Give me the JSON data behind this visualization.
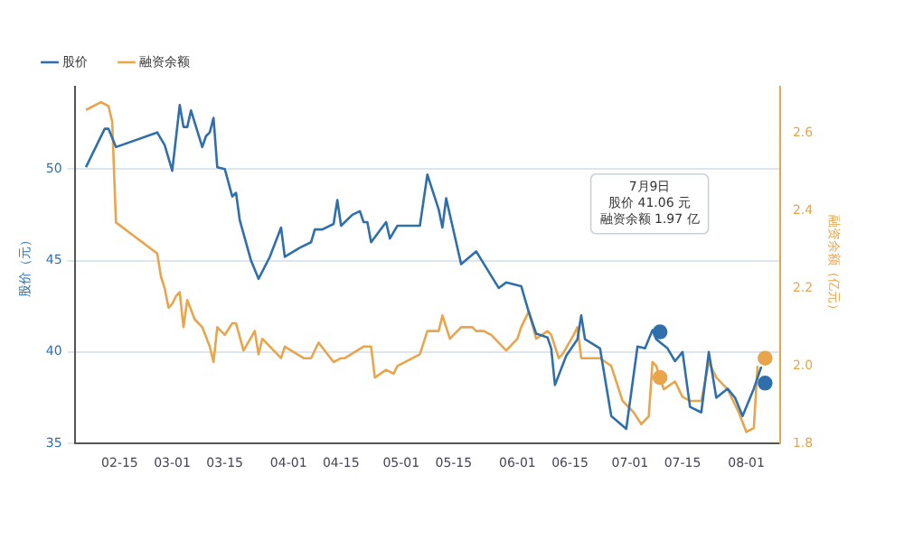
{
  "chart_data": {
    "type": "line",
    "ylabel": "股价（元）",
    "y2label": "融资余额（亿元）",
    "xlim": [
      "--02-03",
      "--08-10"
    ],
    "xticks": [
      {
        "value": "--02-15",
        "label": "02-15"
      },
      {
        "value": "--03-01",
        "label": "03-01"
      },
      {
        "value": "--03-15",
        "label": "03-15"
      },
      {
        "value": "--04-01",
        "label": "04-01"
      },
      {
        "value": "--04-15",
        "label": "04-15"
      },
      {
        "value": "--05-01",
        "label": "05-01"
      },
      {
        "value": "--05-15",
        "label": "05-15"
      },
      {
        "value": "--06-01",
        "label": "06-01"
      },
      {
        "value": "--06-15",
        "label": "06-15"
      },
      {
        "value": "--07-01",
        "label": "07-01"
      },
      {
        "value": "--07-15",
        "label": "07-15"
      },
      {
        "value": "--08-01",
        "label": "08-01"
      }
    ],
    "ylim": [
      35,
      54.5
    ],
    "yticks": [
      35,
      40,
      45,
      50
    ],
    "y2lim": [
      1.8,
      2.72
    ],
    "y2ticks": [
      1.8,
      {
        "value": 2,
        "label": "2.0"
      },
      2.2,
      2.4,
      2.6
    ],
    "grid": "y",
    "legend": "top left",
    "marker": "none",
    "line_style": "solid",
    "series": [
      {
        "name": "股价",
        "color": "#2f6fab",
        "x": [
          "--02-06",
          "--02-11",
          "--02-12",
          "--02-14",
          "--02-25",
          "--02-27",
          "--03-01",
          "--03-02",
          "--03-03",
          "--03-04",
          "--03-05",
          "--03-06",
          "--03-09",
          "--03-10",
          "--03-11",
          "--03-12",
          "--03-13",
          "--03-15",
          "--03-17",
          "--03-18",
          "--03-19",
          "--03-22",
          "--03-24",
          "--03-27",
          "--03-30",
          "--03-31",
          "--04-04",
          "--04-07",
          "--04-08",
          "--04-10",
          "--04-13",
          "--04-14",
          "--04-15",
          "--04-18",
          "--04-20",
          "--04-21",
          "--04-22",
          "--04-23",
          "--04-27",
          "--04-28",
          "--04-30",
          "--05-06",
          "--05-08",
          "--05-11",
          "--05-12",
          "--05-13",
          "--05-17",
          "--05-21",
          "--05-27",
          "--05-29",
          "--06-02",
          "--06-04",
          "--06-06",
          "--06-09",
          "--06-10",
          "--06-11",
          "--06-14",
          "--06-17",
          "--06-18",
          "--06-19",
          "--06-23",
          "--06-26",
          "--06-30",
          "--07-03",
          "--07-05",
          "--07-07",
          "--07-08",
          "--07-11",
          "--07-13",
          "--07-15",
          "--07-17",
          "--07-20",
          "--07-22",
          "--07-24",
          "--07-27",
          "--07-29",
          "--07-31",
          "--08-03",
          "--08-05"
        ],
        "values": [
          50.1,
          52.2,
          52.2,
          51.2,
          52.0,
          51.3,
          49.9,
          51.7,
          53.5,
          52.3,
          52.3,
          53.2,
          51.2,
          51.8,
          52.0,
          52.8,
          50.1,
          50.0,
          48.5,
          48.7,
          47.2,
          45.0,
          44.0,
          45.2,
          46.8,
          45.2,
          45.7,
          46.0,
          46.7,
          46.7,
          47.0,
          48.3,
          46.9,
          47.5,
          47.7,
          47.1,
          47.1,
          46.0,
          47.1,
          46.2,
          46.9,
          46.9,
          49.7,
          47.8,
          46.8,
          48.4,
          44.8,
          45.5,
          43.5,
          43.8,
          43.6,
          42.2,
          41.0,
          40.8,
          40.2,
          38.2,
          39.8,
          40.7,
          42.0,
          40.7,
          40.2,
          36.5,
          35.8,
          40.3,
          40.2,
          41.2,
          40.7,
          40.2,
          39.5,
          40.0,
          37.0,
          36.7,
          40.0,
          37.5,
          38.0,
          37.5,
          36.5,
          38.0,
          39.2
        ]
      },
      {
        "name": "融资余额",
        "color": "#e8a54b",
        "axis": "y2",
        "x": [
          "--02-06",
          "--02-10",
          "--02-12",
          "--02-13",
          "--02-14",
          "--02-25",
          "--02-26",
          "--02-27",
          "--02-28",
          "--03-01",
          "--03-02",
          "--03-03",
          "--03-04",
          "--03-05",
          "--03-07",
          "--03-09",
          "--03-11",
          "--03-12",
          "--03-13",
          "--03-15",
          "--03-17",
          "--03-18",
          "--03-20",
          "--03-23",
          "--03-24",
          "--03-25",
          "--03-30",
          "--03-31",
          "--04-05",
          "--04-07",
          "--04-09",
          "--04-13",
          "--04-15",
          "--04-16",
          "--04-21",
          "--04-23",
          "--04-24",
          "--04-27",
          "--04-29",
          "--04-30",
          "--05-06",
          "--05-08",
          "--05-11",
          "--05-12",
          "--05-14",
          "--05-17",
          "--05-20",
          "--05-21",
          "--05-23",
          "--05-25",
          "--05-29",
          "--06-01",
          "--06-02",
          "--06-04",
          "--06-06",
          "--06-09",
          "--06-10",
          "--06-12",
          "--06-13",
          "--06-16",
          "--06-17",
          "--06-18",
          "--06-23",
          "--06-26",
          "--06-29",
          "--06-30",
          "--07-02",
          "--07-04",
          "--07-06",
          "--07-07",
          "--07-08",
          "--07-10",
          "--07-13",
          "--07-15",
          "--07-17",
          "--07-20",
          "--07-22",
          "--07-24",
          "--07-27",
          "--07-29",
          "--07-30",
          "--08-01",
          "--08-03",
          "--08-04"
        ],
        "values": [
          2.66,
          2.68,
          2.67,
          2.63,
          2.37,
          2.29,
          2.23,
          2.2,
          2.15,
          2.16,
          2.18,
          2.19,
          2.1,
          2.17,
          2.12,
          2.1,
          2.05,
          2.01,
          2.1,
          2.08,
          2.11,
          2.11,
          2.04,
          2.09,
          2.03,
          2.07,
          2.02,
          2.05,
          2.02,
          2.02,
          2.06,
          2.01,
          2.02,
          2.02,
          2.05,
          2.05,
          1.97,
          1.99,
          1.98,
          2.0,
          2.03,
          2.09,
          2.09,
          2.13,
          2.07,
          2.1,
          2.1,
          2.09,
          2.09,
          2.08,
          2.04,
          2.07,
          2.1,
          2.14,
          2.07,
          2.09,
          2.08,
          2.02,
          2.03,
          2.08,
          2.1,
          2.02,
          2.02,
          2.0,
          1.91,
          1.9,
          1.88,
          1.85,
          1.87,
          2.01,
          2.0,
          1.94,
          1.96,
          1.92,
          1.91,
          1.91,
          2.01,
          1.97,
          1.94,
          1.9,
          1.88,
          1.83,
          1.84,
          2.0
        ]
      },
      {
        "type": "scatter",
        "marker": "circle",
        "color": "#2f6fab",
        "x": [
          "--07-09",
          "--08-06"
        ],
        "values": [
          41.1,
          38.3
        ]
      },
      {
        "type": "scatter",
        "marker": "circle",
        "color": "#e8a54b",
        "axis": "y2",
        "x": [
          "--07-09",
          "--08-06"
        ],
        "values": [
          1.97,
          2.02
        ]
      }
    ],
    "annotations": [
      "7月9日",
      "股价 41.06 元",
      "融资余额 1.97 亿"
    ]
  }
}
